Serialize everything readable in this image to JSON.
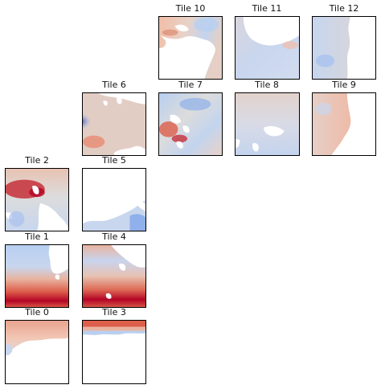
{
  "figure": {
    "tiles": [
      {
        "id": "tile-0",
        "title": "Tile 0"
      },
      {
        "id": "tile-1",
        "title": "Tile 1"
      },
      {
        "id": "tile-2",
        "title": "Tile 2"
      },
      {
        "id": "tile-3",
        "title": "Tile 3"
      },
      {
        "id": "tile-4",
        "title": "Tile 4"
      },
      {
        "id": "tile-5",
        "title": "Tile 5"
      },
      {
        "id": "tile-6",
        "title": "Tile 6"
      },
      {
        "id": "tile-7",
        "title": "Tile 7"
      },
      {
        "id": "tile-8",
        "title": "Tile 8"
      },
      {
        "id": "tile-9",
        "title": "Tile 9"
      },
      {
        "id": "tile-10",
        "title": "Tile 10"
      },
      {
        "id": "tile-11",
        "title": "Tile 11"
      },
      {
        "id": "tile-12",
        "title": "Tile 12"
      }
    ],
    "colors": {
      "deep_red": "#b40426",
      "red": "#dd5e4a",
      "light_red": "#f2bca5",
      "neutral": "#dcdcdc",
      "light_blue": "#b8cff0",
      "blue": "#6f92e6",
      "deep_blue": "#3b4cc0",
      "land": "#ffffff",
      "frame": "#000000"
    }
  }
}
